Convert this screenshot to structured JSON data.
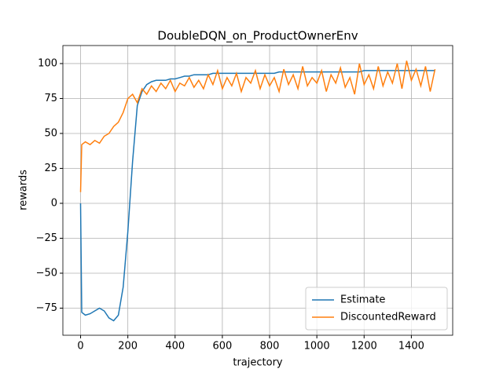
{
  "chart_data": {
    "type": "line",
    "title": "DoubleDQN_on_ProductOwnerEnv",
    "x_label": "trajectory",
    "y_label": "rewards",
    "x": [
      0,
      5,
      20,
      40,
      60,
      80,
      100,
      120,
      140,
      160,
      180,
      200,
      220,
      240,
      260,
      280,
      300,
      320,
      340,
      360,
      380,
      400,
      420,
      440,
      460,
      480,
      500,
      520,
      540,
      560,
      580,
      600,
      620,
      640,
      660,
      680,
      700,
      720,
      740,
      760,
      780,
      800,
      820,
      840,
      860,
      880,
      900,
      920,
      940,
      960,
      980,
      1000,
      1020,
      1040,
      1060,
      1080,
      1100,
      1120,
      1140,
      1160,
      1180,
      1200,
      1220,
      1240,
      1260,
      1280,
      1300,
      1320,
      1340,
      1360,
      1380,
      1400,
      1420,
      1440,
      1460,
      1480,
      1500
    ],
    "series": [
      {
        "name": "Estimate",
        "color": "#1f77b4",
        "values": [
          0,
          -78,
          -80,
          -79,
          -77,
          -75,
          -77,
          -82,
          -84,
          -80,
          -60,
          -20,
          30,
          70,
          80,
          85,
          87,
          88,
          88,
          88,
          89,
          89,
          90,
          91,
          91,
          92,
          92,
          92,
          92,
          93,
          93,
          93,
          93,
          93,
          93,
          93,
          93,
          93,
          93,
          93,
          93,
          93,
          93,
          94,
          94,
          94,
          94,
          94,
          94,
          94,
          94,
          94,
          94,
          94,
          94,
          94,
          94,
          94,
          94,
          94,
          94,
          95,
          95,
          95,
          95,
          95,
          95,
          95,
          95,
          95,
          95,
          95,
          95,
          95,
          95,
          95,
          95
        ]
      },
      {
        "name": "DiscountedReward",
        "color": "#ff7f0e",
        "values": [
          8,
          42,
          44,
          42,
          45,
          43,
          48,
          50,
          55,
          58,
          65,
          75,
          78,
          72,
          82,
          78,
          84,
          80,
          86,
          82,
          88,
          80,
          86,
          84,
          90,
          83,
          88,
          82,
          92,
          85,
          95,
          82,
          90,
          84,
          93,
          80,
          90,
          86,
          95,
          82,
          92,
          84,
          90,
          80,
          96,
          85,
          92,
          82,
          98,
          84,
          90,
          86,
          95,
          80,
          92,
          86,
          97,
          83,
          90,
          78,
          100,
          85,
          92,
          82,
          98,
          84,
          94,
          86,
          100,
          82,
          102,
          88,
          96,
          84,
          98,
          80,
          96
        ]
      }
    ],
    "xlim": [
      -75,
      1575
    ],
    "ylim": [
      -94.4,
      112.9
    ],
    "xticks": [
      0,
      200,
      400,
      600,
      800,
      1000,
      1200,
      1400
    ],
    "yticks": [
      {
        "value": -75,
        "label": "−75"
      },
      {
        "value": -50,
        "label": "−50"
      },
      {
        "value": -25,
        "label": "−25"
      },
      0,
      25,
      50,
      75,
      100
    ],
    "grid": true,
    "legend": "lower-right"
  }
}
